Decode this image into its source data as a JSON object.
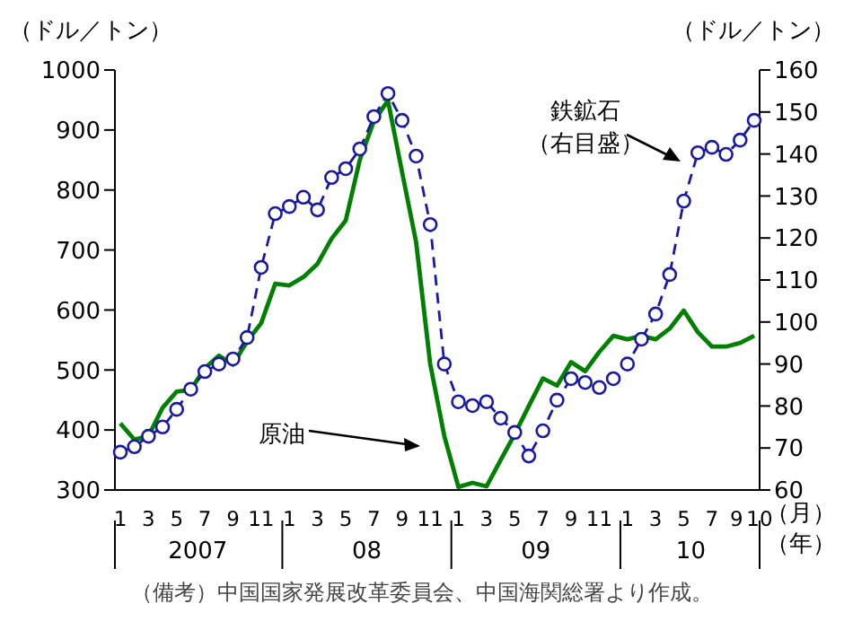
{
  "chart_data": {
    "type": "line",
    "categories": [
      "1",
      null,
      "3",
      null,
      "5",
      null,
      "7",
      null,
      "9",
      null,
      "11",
      null,
      "1",
      null,
      "3",
      null,
      "5",
      null,
      "7",
      null,
      "9",
      null,
      "11",
      null,
      "1",
      null,
      "3",
      null,
      "5",
      null,
      "7",
      null,
      "9",
      null,
      "11",
      null,
      "1",
      null,
      "3",
      null,
      "5",
      null,
      "7",
      null,
      "9",
      "10"
    ],
    "series": [
      {
        "name": "原油",
        "color": "#008000",
        "line_style": "solid",
        "marker": "none",
        "values": [
          411,
          384,
          390,
          437,
          464,
          467,
          503,
          524,
          509,
          548,
          578,
          644,
          641,
          655,
          677,
          719,
          749,
          850,
          915,
          949,
          830,
          713,
          510,
          390,
          305,
          312,
          306,
          350,
          393,
          440,
          486,
          474,
          513,
          498,
          530,
          557,
          551,
          557,
          551,
          569,
          599,
          563,
          539,
          539,
          545,
          557
        ]
      },
      {
        "name": "鉄鉱石（右目盛）",
        "color": "#1a1aa0",
        "axis": "y2",
        "line_style": "dashed",
        "marker": "circle",
        "values": [
          69,
          70.3,
          72.8,
          75,
          79.2,
          84,
          88.2,
          90,
          91.2,
          96.3,
          113,
          125.8,
          127.5,
          129.7,
          126.7,
          134.4,
          136.5,
          141.2,
          148.9,
          154.4,
          148,
          139.5,
          123.2,
          90,
          81,
          80.1,
          81,
          77.1,
          73.7,
          68.1,
          74.1,
          81.4,
          86.5,
          85.6,
          84.4,
          86.5,
          90,
          95.9,
          101.9,
          111.3,
          128.8,
          140.3,
          141.6,
          139.9,
          143.3,
          148
        ]
      }
    ],
    "ylabel": "（ドル／トン）",
    "y2label": "（ドル／トン）",
    "xlabel": "（月）",
    "ylim": [
      300,
      1000
    ],
    "yticks": [
      300,
      400,
      500,
      600,
      700,
      800,
      900,
      1000
    ],
    "y2lim": [
      60,
      160
    ],
    "y2ticks": [
      60,
      70,
      80,
      90,
      100,
      110,
      120,
      130,
      140,
      150,
      160
    ],
    "annotations": [
      "（備考）中国国家発展改革委員会、中国海関総署より作成。",
      "（年）",
      "2007",
      "08",
      "09",
      "10"
    ]
  }
}
